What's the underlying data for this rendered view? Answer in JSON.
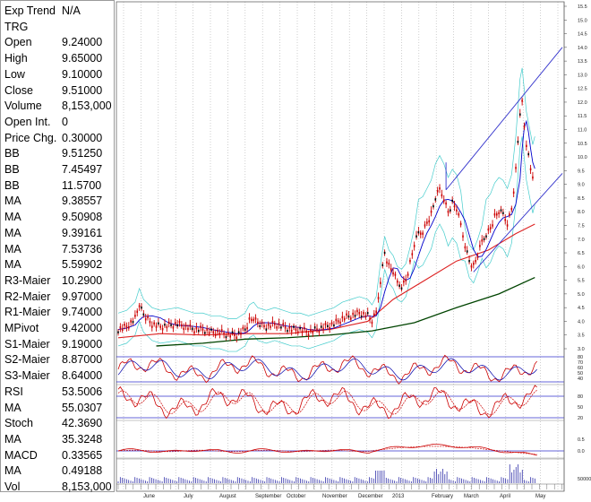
{
  "info_panel": {
    "rows": [
      {
        "label": "Exp Trend",
        "value": "N/A"
      },
      {
        "label": "TRG",
        "value": ""
      },
      {
        "label": "Open",
        "value": "9.24000"
      },
      {
        "label": "High",
        "value": "9.65000"
      },
      {
        "label": "Low",
        "value": "9.10000"
      },
      {
        "label": "Close",
        "value": "9.51000"
      },
      {
        "label": "Volume",
        "value": "8,153,000"
      },
      {
        "label": "Open Int.",
        "value": "0"
      },
      {
        "label": "Price Chg.",
        "value": "0.30000"
      },
      {
        "label": "BB",
        "value": "9.51250"
      },
      {
        "label": "BB",
        "value": "7.45497"
      },
      {
        "label": "BB",
        "value": "11.5700"
      },
      {
        "label": "MA",
        "value": "9.38557"
      },
      {
        "label": "MA",
        "value": "9.50908"
      },
      {
        "label": "MA",
        "value": "9.39161"
      },
      {
        "label": "MA",
        "value": "7.53736"
      },
      {
        "label": "MA",
        "value": "5.59902"
      },
      {
        "label": "R3-Maier",
        "value": "10.2900"
      },
      {
        "label": "R2-Maier",
        "value": "9.97000"
      },
      {
        "label": "R1-Maier",
        "value": "9.74000"
      },
      {
        "label": "MPivot",
        "value": "9.42000"
      },
      {
        "label": "S1-Maier",
        "value": "9.19000"
      },
      {
        "label": "S2-Maier",
        "value": "8.87000"
      },
      {
        "label": "S3-Maier",
        "value": "8.64000"
      },
      {
        "label": "RSI",
        "value": "53.5006"
      },
      {
        "label": "MA",
        "value": "55.0307"
      },
      {
        "label": "Stoch",
        "value": "42.3690"
      },
      {
        "label": "MA",
        "value": "35.3248"
      },
      {
        "label": "MACD",
        "value": "0.33565"
      },
      {
        "label": "MA",
        "value": "0.49188"
      },
      {
        "label": "Vol",
        "value": "8,153,000"
      }
    ]
  },
  "colors": {
    "candle": "#cc0000",
    "candle_body": "#000000",
    "ma_fast": "#cc0000",
    "ma_mid": "#0000cc",
    "ma_slow": "#dd2222",
    "ma_long": "#004400",
    "bollinger": "#44cccc",
    "channel": "#3333cc",
    "grid": "#b0b0b0",
    "indicator_line": "#0000aa",
    "indicator_signal": "#cc0000",
    "volume": "#3333aa"
  },
  "chart_data": {
    "type": "line",
    "y_axis_ticks": [
      "15.5",
      "15.0",
      "14.5",
      "14.0",
      "13.5",
      "13.0",
      "12.5",
      "12.0",
      "11.5",
      "11.0",
      "10.5",
      "10.0",
      "9.5",
      "9.0",
      "8.5",
      "8.0",
      "7.5",
      "7.0",
      "6.5",
      "6.0",
      "5.5",
      "5.0",
      "4.5",
      "4.0",
      "3.5",
      "3.0"
    ],
    "ylim": [
      3.0,
      15.5
    ],
    "months": [
      "June",
      "July",
      "August",
      "September",
      "October",
      "November",
      "December",
      "2013",
      "February",
      "March",
      "April",
      "May"
    ],
    "price_series": [
      [
        0,
        3.7
      ],
      [
        4,
        3.8
      ],
      [
        8,
        4.1
      ],
      [
        10,
        4.6
      ],
      [
        12,
        4.2
      ],
      [
        16,
        3.9
      ],
      [
        20,
        3.8
      ],
      [
        24,
        3.85
      ],
      [
        28,
        3.9
      ],
      [
        32,
        3.8
      ],
      [
        36,
        3.7
      ],
      [
        40,
        3.7
      ],
      [
        44,
        3.6
      ],
      [
        48,
        3.6
      ],
      [
        52,
        3.5
      ],
      [
        56,
        3.5
      ],
      [
        60,
        3.7
      ],
      [
        62,
        4.0
      ],
      [
        64,
        4.1
      ],
      [
        66,
        3.9
      ],
      [
        70,
        3.8
      ],
      [
        74,
        3.9
      ],
      [
        78,
        3.8
      ],
      [
        82,
        3.7
      ],
      [
        86,
        3.7
      ],
      [
        90,
        3.6
      ],
      [
        94,
        3.7
      ],
      [
        98,
        3.8
      ],
      [
        102,
        3.9
      ],
      [
        106,
        4.1
      ],
      [
        110,
        4.2
      ],
      [
        114,
        4.3
      ],
      [
        118,
        4.2
      ],
      [
        120,
        4.0
      ],
      [
        122,
        4.3
      ],
      [
        124,
        5.5
      ],
      [
        126,
        6.5
      ],
      [
        128,
        6.0
      ],
      [
        130,
        5.8
      ],
      [
        132,
        5.4
      ],
      [
        134,
        5.3
      ],
      [
        136,
        5.5
      ],
      [
        138,
        6.1
      ],
      [
        140,
        6.8
      ],
      [
        142,
        7.2
      ],
      [
        144,
        7.3
      ],
      [
        146,
        7.6
      ],
      [
        148,
        7.9
      ],
      [
        150,
        8.5
      ],
      [
        152,
        8.8
      ],
      [
        154,
        8.5
      ],
      [
        156,
        8.0
      ],
      [
        158,
        8.3
      ],
      [
        160,
        8.1
      ],
      [
        162,
        7.5
      ],
      [
        164,
        6.8
      ],
      [
        166,
        6.2
      ],
      [
        168,
        6.0
      ],
      [
        170,
        6.4
      ],
      [
        172,
        6.9
      ],
      [
        174,
        7.2
      ],
      [
        176,
        7.4
      ],
      [
        178,
        7.8
      ],
      [
        180,
        8.0
      ],
      [
        182,
        7.9
      ],
      [
        184,
        7.6
      ],
      [
        186,
        8.1
      ],
      [
        188,
        9.5
      ],
      [
        190,
        11.6
      ],
      [
        191,
        12.0
      ],
      [
        192,
        11.2
      ],
      [
        193,
        10.4
      ],
      [
        194,
        10.0
      ],
      [
        195,
        9.6
      ],
      [
        196,
        9.2
      ],
      [
        197,
        9.5
      ]
    ],
    "ma_long_series": [
      [
        18,
        3.1
      ],
      [
        40,
        3.2
      ],
      [
        60,
        3.35
      ],
      [
        80,
        3.4
      ],
      [
        100,
        3.5
      ],
      [
        120,
        3.65
      ],
      [
        140,
        3.95
      ],
      [
        160,
        4.5
      ],
      [
        180,
        5.0
      ],
      [
        197,
        5.6
      ]
    ],
    "ma_slow_series": [
      [
        0,
        3.4
      ],
      [
        20,
        3.55
      ],
      [
        40,
        3.5
      ],
      [
        60,
        3.55
      ],
      [
        80,
        3.55
      ],
      [
        100,
        3.7
      ],
      [
        118,
        4.0
      ],
      [
        130,
        4.8
      ],
      [
        145,
        5.5
      ],
      [
        160,
        6.2
      ],
      [
        175,
        6.6
      ],
      [
        188,
        7.2
      ],
      [
        197,
        7.55
      ]
    ],
    "channel_lines": [
      [
        [
          155,
          8.8
        ],
        [
          210,
          14.0
        ]
      ],
      [
        [
          168,
          5.8
        ],
        [
          210,
          9.4
        ]
      ]
    ],
    "indicator_panels": [
      {
        "name": "RSI",
        "ticks": [
          "80",
          "70",
          "60",
          "50",
          "40"
        ],
        "ref_levels": [
          70,
          30
        ]
      },
      {
        "name": "Stoch",
        "ticks": [
          "80",
          "50",
          "20"
        ],
        "ref_levels": [
          80,
          20
        ]
      },
      {
        "name": "MACD",
        "ticks": [
          "0.5",
          "0.0"
        ],
        "ref_levels": [
          0
        ]
      },
      {
        "name": "Vol",
        "ticks": [
          "50000"
        ],
        "ref_levels": []
      }
    ]
  }
}
